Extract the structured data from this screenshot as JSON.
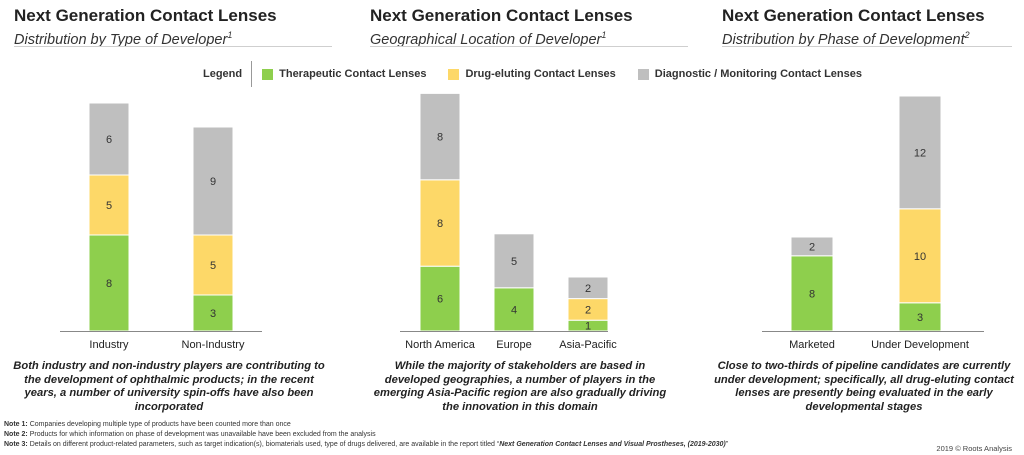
{
  "colors": {
    "therapeutic": "#8ecf4d",
    "drug_eluting": "#fdd868",
    "diagnostic": "#bfbfbf",
    "axis": "#888888"
  },
  "panels": [
    {
      "title": "Next Generation Contact Lenses",
      "subtitle": "Distribution by Type of Developer",
      "subtitle_sup": "1",
      "caption": "Both industry and non-industry players are contributing to the development of ophthalmic products; in the recent years, a number of university spin-offs have also been incorporated"
    },
    {
      "title": "Next Generation Contact Lenses",
      "subtitle": "Geographical Location of Developer",
      "subtitle_sup": "1",
      "caption": "While the majority of stakeholders are based in developed geographies, a number of players in the emerging Asia-Pacific region are also gradually driving the innovation in this domain"
    },
    {
      "title": "Next Generation Contact Lenses",
      "subtitle": "Distribution by Phase of Development",
      "subtitle_sup": "2",
      "caption": "Close to two-thirds of pipeline candidates are currently under development; specifically, all drug-eluting contact lenses are presently being evaluated in the early developmental stages"
    }
  ],
  "legend": {
    "title": "Legend",
    "items": [
      {
        "label": "Therapeutic Contact Lenses",
        "color": "#8ecf4d"
      },
      {
        "label": "Drug-eluting Contact Lenses",
        "color": "#fdd868"
      },
      {
        "label": "Diagnostic / Monitoring Contact Lenses",
        "color": "#bfbfbf"
      }
    ]
  },
  "chart_data": [
    {
      "type": "bar",
      "stacked": true,
      "title": "Distribution by Type of Developer",
      "categories": [
        "Industry",
        "Non-Industry"
      ],
      "series": [
        {
          "name": "Therapeutic Contact Lenses",
          "values": [
            8,
            3
          ]
        },
        {
          "name": "Drug-eluting Contact Lenses",
          "values": [
            5,
            5
          ]
        },
        {
          "name": "Diagnostic / Monitoring Contact Lenses",
          "values": [
            6,
            9
          ]
        }
      ]
    },
    {
      "type": "bar",
      "stacked": true,
      "title": "Geographical Location of Developer",
      "categories": [
        "North America",
        "Europe",
        "Asia-Pacific"
      ],
      "series": [
        {
          "name": "Therapeutic Contact Lenses",
          "values": [
            6,
            4,
            1
          ]
        },
        {
          "name": "Drug-eluting Contact Lenses",
          "values": [
            8,
            0,
            2
          ]
        },
        {
          "name": "Diagnostic / Monitoring Contact Lenses",
          "values": [
            8,
            5,
            2
          ]
        }
      ]
    },
    {
      "type": "bar",
      "stacked": true,
      "title": "Distribution by Phase of Development",
      "categories": [
        "Marketed",
        "Under Development"
      ],
      "series": [
        {
          "name": "Therapeutic Contact Lenses",
          "values": [
            8,
            3
          ]
        },
        {
          "name": "Drug-eluting Contact Lenses",
          "values": [
            0,
            10
          ]
        },
        {
          "name": "Diagnostic / Monitoring Contact Lenses",
          "values": [
            2,
            12
          ]
        }
      ]
    }
  ],
  "notes": [
    {
      "label": "Note 1:",
      "text": "Companies developing multiple type of products have been counted more than once"
    },
    {
      "label": "Note 2:",
      "text": "Products for which information on phase of development was unavailable have been excluded from the analysis"
    },
    {
      "label": "Note 3:",
      "text": "Details on different product-related parameters, such as target indication(s), biomaterials used, type of drugs delivered, are available in the report titled “",
      "ref": "Next Generation Contact Lenses and Visual Prostheses, (2019-2030)",
      "tail": "”"
    }
  ],
  "copyright": "2019 © Roots Analysis"
}
